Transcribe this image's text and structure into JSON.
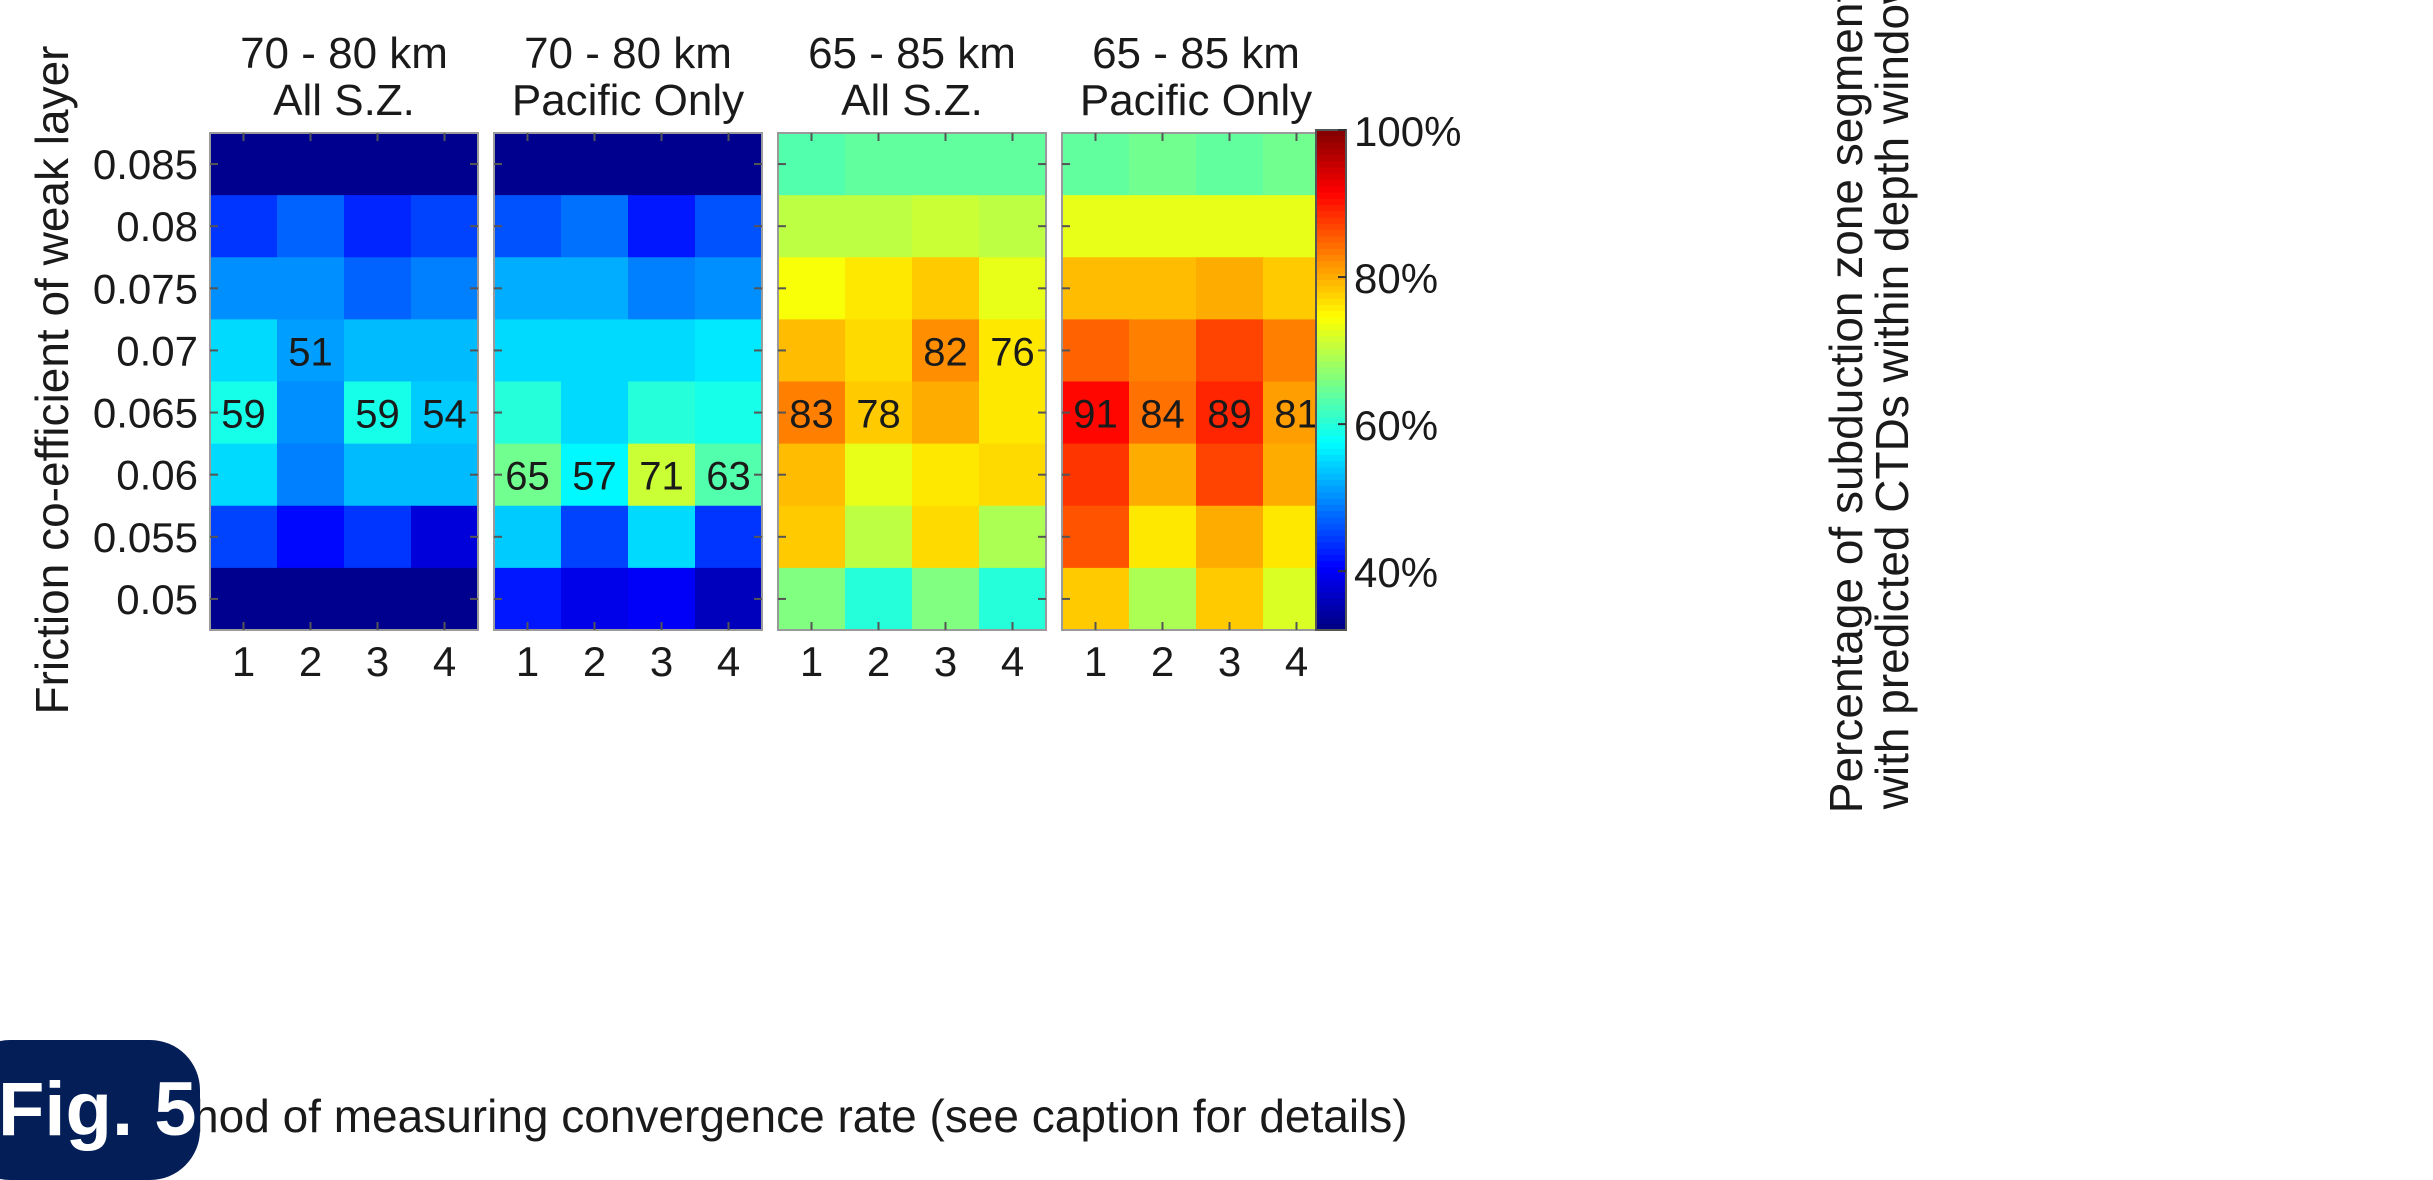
{
  "figure_label": "Fig. 5",
  "colors": {
    "badge_bg": "#041e57",
    "colormap": "jet"
  },
  "chart_data": {
    "type": "heatmap",
    "xlabel": "Method of measuring convergence rate (see caption for details)",
    "ylabel": "Friction co-efficient of weak layer",
    "x_categories": [
      "1",
      "2",
      "3",
      "4"
    ],
    "y_categories": [
      "0.085",
      "0.08",
      "0.075",
      "0.07",
      "0.065",
      "0.06",
      "0.055",
      "0.05"
    ],
    "colorbar": {
      "label_line1": "Percentage of subduction zone segments",
      "label_line2": "with predicted CTDs within depth window",
      "range": [
        32,
        100
      ],
      "ticks": [
        {
          "value": 40,
          "label": "40%"
        },
        {
          "value": 60,
          "label": "60%"
        },
        {
          "value": 80,
          "label": "80%"
        },
        {
          "value": 100,
          "label": "100%"
        }
      ]
    },
    "panels": [
      {
        "title_line1": "70 - 80 km",
        "title_line2": "All S.Z.",
        "values": [
          [
            33,
            33,
            33,
            33
          ],
          [
            44,
            47,
            43,
            45
          ],
          [
            50,
            50,
            47,
            49
          ],
          [
            55,
            51,
            53,
            53
          ],
          [
            59,
            50,
            59,
            54
          ],
          [
            55,
            49,
            53,
            53
          ],
          [
            45,
            41,
            44,
            38
          ],
          [
            33,
            33,
            33,
            33
          ]
        ],
        "labels": [
          [
            "",
            "",
            "",
            ""
          ],
          [
            "",
            "",
            "",
            ""
          ],
          [
            "",
            "",
            "",
            ""
          ],
          [
            "",
            "51",
            "",
            ""
          ],
          [
            "59",
            "",
            "59",
            "54"
          ],
          [
            "",
            "",
            "",
            ""
          ],
          [
            "",
            "",
            "",
            ""
          ],
          [
            "",
            "",
            "",
            ""
          ]
        ]
      },
      {
        "title_line1": "70 - 80 km",
        "title_line2": "Pacific Only",
        "values": [
          [
            33,
            33,
            33,
            33
          ],
          [
            46,
            48,
            42,
            46
          ],
          [
            52,
            52,
            49,
            50
          ],
          [
            55,
            55,
            55,
            56
          ],
          [
            60,
            55,
            60,
            59
          ],
          [
            65,
            57,
            71,
            63
          ],
          [
            54,
            45,
            55,
            44
          ],
          [
            42,
            39,
            40,
            36
          ]
        ],
        "labels": [
          [
            "",
            "",
            "",
            ""
          ],
          [
            "",
            "",
            "",
            ""
          ],
          [
            "",
            "",
            "",
            ""
          ],
          [
            "",
            "",
            "",
            ""
          ],
          [
            "",
            "",
            "",
            ""
          ],
          [
            "65",
            "57",
            "71",
            "63"
          ],
          [
            "",
            "",
            "",
            ""
          ],
          [
            "",
            "",
            "",
            ""
          ]
        ]
      },
      {
        "title_line1": "65 - 85 km",
        "title_line2": "All S.Z.",
        "values": [
          [
            63,
            64,
            64,
            64
          ],
          [
            70,
            70,
            71,
            70
          ],
          [
            74,
            76,
            78,
            73
          ],
          [
            79,
            77,
            82,
            76
          ],
          [
            83,
            78,
            80,
            76
          ],
          [
            79,
            73,
            76,
            77
          ],
          [
            78,
            70,
            77,
            69
          ],
          [
            66,
            60,
            66,
            60
          ]
        ],
        "labels": [
          [
            "",
            "",
            "",
            ""
          ],
          [
            "",
            "",
            "",
            ""
          ],
          [
            "",
            "",
            "",
            ""
          ],
          [
            "",
            "",
            "82",
            "76"
          ],
          [
            "83",
            "78",
            "",
            ""
          ],
          [
            "",
            "",
            "",
            ""
          ],
          [
            "",
            "",
            "",
            ""
          ],
          [
            "",
            "",
            "",
            ""
          ]
        ]
      },
      {
        "title_line1": "65 - 85 km",
        "title_line2": "Pacific Only",
        "values": [
          [
            64,
            65,
            64,
            65
          ],
          [
            73,
            73,
            73,
            73
          ],
          [
            79,
            79,
            80,
            78
          ],
          [
            85,
            83,
            87,
            83
          ],
          [
            91,
            84,
            89,
            81
          ],
          [
            88,
            80,
            87,
            80
          ],
          [
            86,
            76,
            80,
            76
          ],
          [
            78,
            69,
            78,
            72
          ]
        ],
        "labels": [
          [
            "",
            "",
            "",
            ""
          ],
          [
            "",
            "",
            "",
            ""
          ],
          [
            "",
            "",
            "",
            ""
          ],
          [
            "",
            "",
            "",
            ""
          ],
          [
            "91",
            "84",
            "89",
            "81"
          ],
          [
            "",
            "",
            "",
            ""
          ],
          [
            "",
            "",
            "",
            ""
          ],
          [
            "",
            "",
            "",
            ""
          ]
        ]
      }
    ]
  }
}
